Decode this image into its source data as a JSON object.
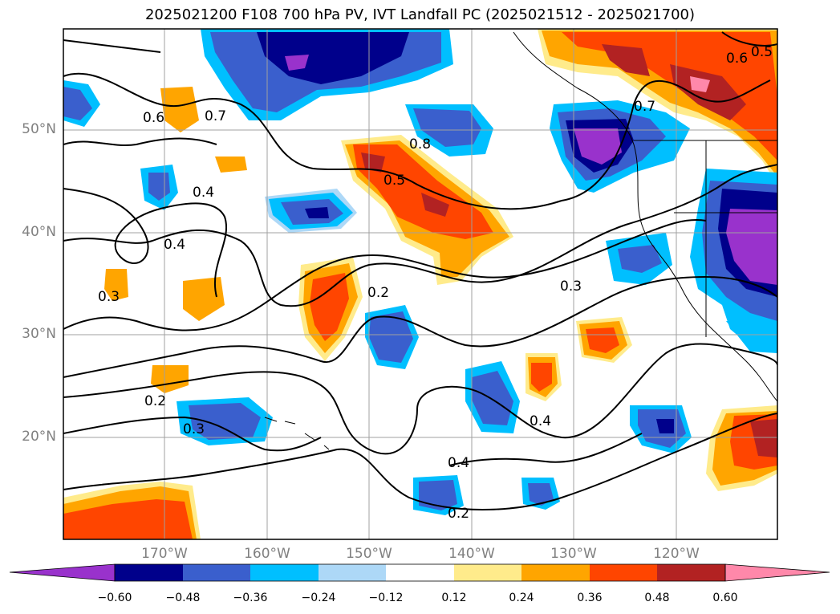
{
  "title": "2025021200 F108 700 hPa PV, IVT Landfall PC (2025021512 - 2025021700)",
  "lat_labels": [
    "50°N",
    "40°N",
    "30°N",
    "20°N"
  ],
  "lon_labels": [
    "170°W",
    "160°W",
    "150°W",
    "140°W",
    "130°W",
    "120°W"
  ],
  "colorbar": {
    "ticks": [
      "−0.60",
      "−0.48",
      "−0.36",
      "−0.24",
      "−0.12",
      "0.12",
      "0.24",
      "0.36",
      "0.48",
      "0.60"
    ],
    "colors": [
      "#9932CC",
      "#00008B",
      "#3A5FCD",
      "#00BFFF",
      "#ADD8F7",
      "#FFFFFF",
      "#FFEB8B",
      "#FFA500",
      "#FF4500",
      "#B22222",
      "#FF88AA"
    ]
  },
  "contour_labels": [
    "0.6",
    "0.7",
    "0.4",
    "0.4",
    "0.3",
    "0.2",
    "0.3",
    "0.8",
    "0.5",
    "0.2",
    "0.3",
    "0.7",
    "0.6",
    "0.4",
    "0.4",
    "0.2",
    "0.5"
  ],
  "colors": {
    "purple": "#9932CC",
    "navy": "#00008B",
    "blue": "#3A5FCD",
    "cyan": "#00BFFF",
    "lightblue": "#ADD8F7",
    "yellow": "#FFEB8B",
    "orange": "#FFA500",
    "redorange": "#FF4500",
    "firebrick": "#B22222",
    "pink": "#FF88AA"
  }
}
